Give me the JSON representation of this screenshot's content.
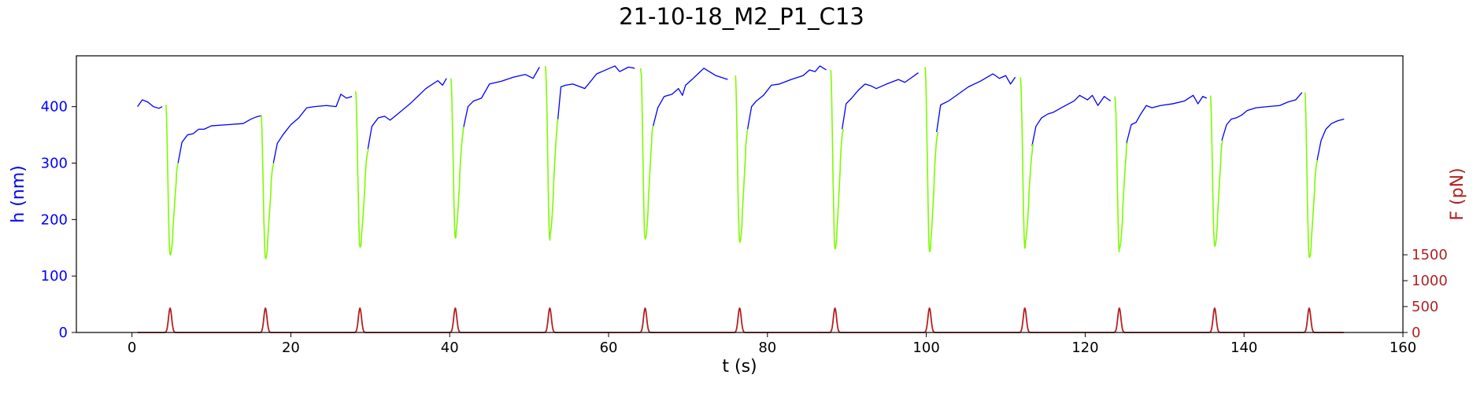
{
  "chart_data": {
    "type": "line",
    "title": "21-10-18_M2_P1_C13",
    "xlabel": "t (s)",
    "ylabel_left": "h (nm)",
    "ylabel_right": "F (pN)",
    "xlim": [
      -7,
      160
    ],
    "ylim_left": [
      0,
      490
    ],
    "ylim_right": [
      0,
      5340
    ],
    "x_ticks": [
      0,
      20,
      40,
      60,
      80,
      100,
      120,
      140,
      160
    ],
    "y_ticks_left": [
      0,
      100,
      200,
      300,
      400
    ],
    "y_ticks_right": [
      0,
      500,
      1000,
      1500
    ],
    "grid": false,
    "colors": {
      "height": "#0000ff",
      "pulse": "#7cfc00",
      "force": "#b22222",
      "left_axis_text": "#0000ff",
      "right_axis_text": "#b22222"
    },
    "pulses": [
      {
        "t": 4.8,
        "min": 135,
        "start": 402,
        "end": 300
      },
      {
        "t": 16.8,
        "min": 130,
        "start": 385,
        "end": 300
      },
      {
        "t": 28.7,
        "min": 152,
        "start": 427,
        "end": 325
      },
      {
        "t": 40.7,
        "min": 170,
        "start": 450,
        "end": 360
      },
      {
        "t": 52.6,
        "min": 168,
        "start": 472,
        "end": 375
      },
      {
        "t": 64.6,
        "min": 162,
        "start": 468,
        "end": 365
      },
      {
        "t": 76.5,
        "min": 158,
        "start": 455,
        "end": 360
      },
      {
        "t": 88.5,
        "min": 148,
        "start": 465,
        "end": 360
      },
      {
        "t": 100.4,
        "min": 145,
        "start": 470,
        "end": 355
      },
      {
        "t": 112.4,
        "min": 153,
        "start": 452,
        "end": 330
      },
      {
        "t": 124.3,
        "min": 145,
        "start": 418,
        "end": 335
      },
      {
        "t": 136.3,
        "min": 150,
        "start": 418,
        "end": 340
      },
      {
        "t": 148.2,
        "min": 132,
        "start": 425,
        "end": 305
      }
    ],
    "height_segments": [
      {
        "x": [
          0.7,
          1.3,
          2,
          2.7,
          3.4,
          3.8
        ],
        "y": [
          400,
          412,
          408,
          400,
          397,
          400
        ]
      },
      {
        "x": [
          5.8,
          6.3,
          7,
          7.7,
          8.4,
          9.1,
          10,
          12,
          14,
          15,
          15.7,
          16.3
        ],
        "y": [
          300,
          337,
          350,
          352,
          360,
          360,
          366,
          368,
          370,
          378,
          382,
          384
        ]
      },
      {
        "x": [
          17.8,
          18.3,
          19,
          20,
          21,
          22,
          23,
          24.5,
          25.7,
          26.3,
          27,
          27.7
        ],
        "y": [
          300,
          335,
          350,
          368,
          380,
          398,
          400,
          402,
          400,
          422,
          415,
          418
        ]
      },
      {
        "x": [
          29.7,
          30.2,
          31,
          31.8,
          32.5,
          33.2,
          35,
          37,
          38.5,
          39.1,
          39.6
        ],
        "y": [
          325,
          365,
          380,
          383,
          376,
          384,
          405,
          432,
          446,
          438,
          450
        ]
      },
      {
        "x": [
          41.7,
          42.3,
          43,
          44,
          45,
          46.5,
          48,
          49.5,
          50.5,
          51.3
        ],
        "y": [
          360,
          400,
          410,
          415,
          440,
          445,
          452,
          457,
          450,
          470
        ]
      },
      {
        "x": [
          53.6,
          54,
          54.6,
          55.5,
          57,
          58.5,
          60.8,
          61.4,
          62.5,
          63.3
        ],
        "y": [
          375,
          435,
          438,
          440,
          432,
          458,
          472,
          462,
          470,
          468
        ]
      },
      {
        "x": [
          65.6,
          66.2,
          67,
          68,
          68.8,
          69.3,
          69.7,
          70.5,
          72,
          73.5,
          75
        ],
        "y": [
          365,
          398,
          418,
          422,
          432,
          420,
          438,
          448,
          468,
          455,
          448
        ]
      },
      {
        "x": [
          77.5,
          78,
          78.6,
          79.5,
          80.5,
          81.5,
          83,
          84.5,
          85.3,
          86,
          86.6,
          87.4
        ],
        "y": [
          360,
          400,
          410,
          420,
          438,
          440,
          448,
          455,
          465,
          462,
          472,
          465
        ]
      },
      {
        "x": [
          89.4,
          89.9,
          90.6,
          91.5,
          92.3,
          93,
          93.7,
          95,
          96.5,
          97.3,
          98,
          99
        ],
        "y": [
          360,
          405,
          415,
          430,
          440,
          437,
          432,
          440,
          448,
          443,
          450,
          460
        ]
      },
      {
        "x": [
          101.3,
          101.8,
          102.8,
          104,
          105.3,
          106.8,
          108.4,
          109.2,
          110,
          110.6,
          111.2
        ],
        "y": [
          355,
          403,
          410,
          422,
          435,
          445,
          458,
          450,
          455,
          440,
          452
        ]
      },
      {
        "x": [
          113.3,
          113.8,
          114.5,
          115.3,
          116,
          117,
          118.6,
          119.3,
          120.3,
          120.9,
          121.6,
          122.4,
          123.2
        ],
        "y": [
          330,
          365,
          380,
          387,
          390,
          398,
          410,
          420,
          412,
          420,
          402,
          418,
          410
        ]
      },
      {
        "x": [
          125.2,
          125.8,
          126.4,
          127,
          127.7,
          128.4,
          129.5,
          131,
          132.5,
          133.6,
          134.2,
          134.8,
          135.3
        ],
        "y": [
          335,
          368,
          372,
          387,
          402,
          398,
          402,
          405,
          410,
          420,
          405,
          418,
          415
        ]
      },
      {
        "x": [
          137.2,
          137.8,
          138.4,
          139,
          139.7,
          140.4,
          141.5,
          143,
          144.5,
          145.5,
          146.5,
          147.3
        ],
        "y": [
          340,
          368,
          378,
          380,
          385,
          393,
          398,
          400,
          402,
          408,
          412,
          425
        ]
      },
      {
        "x": [
          149.2,
          149.7,
          150.3,
          151,
          151.8,
          152.6
        ],
        "y": [
          305,
          340,
          360,
          370,
          375,
          378
        ]
      }
    ],
    "force_series": {
      "x_start": 0.7,
      "x_end": 152.6,
      "baseline": 0,
      "peak": 470,
      "peak_times": [
        4.8,
        16.8,
        28.7,
        40.7,
        52.6,
        64.6,
        76.5,
        88.5,
        100.4,
        112.4,
        124.3,
        136.3,
        148.2
      ]
    }
  }
}
